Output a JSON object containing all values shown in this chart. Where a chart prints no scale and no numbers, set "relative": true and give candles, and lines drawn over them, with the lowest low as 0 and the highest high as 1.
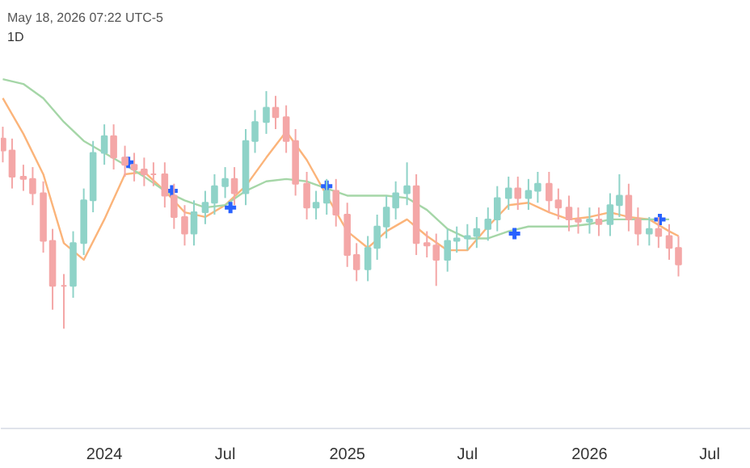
{
  "chart_data": {
    "type": "candlestick",
    "relative": true,
    "title": "1D",
    "annotations": [
      "May 18, 2026 07:22 UTC-5"
    ],
    "xlim": [
      "2023-07-29",
      "2026-09-01"
    ],
    "xticks": [
      {
        "value": "2024-01-01",
        "label": "2024"
      },
      {
        "value": "2024-07-01",
        "label": "Jul"
      },
      {
        "value": "2025-01-01",
        "label": "2025"
      },
      {
        "value": "2025-07-01",
        "label": "Jul"
      },
      {
        "value": "2026-01-01",
        "label": "2026"
      },
      {
        "value": "2026-07-01",
        "label": "Jul"
      }
    ],
    "tick_labels": "x",
    "x": [
      "2023-08-01",
      "2023-08-15",
      "2023-09-01",
      "2023-09-15",
      "2023-10-01",
      "2023-10-15",
      "2023-11-01",
      "2023-11-15",
      "2023-12-01",
      "2023-12-15",
      "2024-01-01",
      "2024-01-15",
      "2024-02-01",
      "2024-02-15",
      "2024-03-01",
      "2024-03-15",
      "2024-04-01",
      "2024-04-15",
      "2024-05-01",
      "2024-05-15",
      "2024-06-01",
      "2024-06-15",
      "2024-07-01",
      "2024-07-15",
      "2024-08-01",
      "2024-08-15",
      "2024-09-01",
      "2024-09-15",
      "2024-10-01",
      "2024-10-15",
      "2024-11-01",
      "2024-11-15",
      "2024-12-01",
      "2024-12-15",
      "2025-01-01",
      "2025-01-15",
      "2025-02-01",
      "2025-02-15",
      "2025-03-01",
      "2025-03-15",
      "2025-04-01",
      "2025-04-15",
      "2025-05-01",
      "2025-05-15",
      "2025-06-01",
      "2025-06-15",
      "2025-07-01",
      "2025-07-15",
      "2025-08-01",
      "2025-08-15",
      "2025-09-01",
      "2025-09-15",
      "2025-10-01",
      "2025-10-15",
      "2025-11-01",
      "2025-11-15",
      "2025-12-01",
      "2025-12-15",
      "2026-01-01",
      "2026-01-15",
      "2026-02-01",
      "2026-02-15",
      "2026-03-01",
      "2026-03-15",
      "2026-04-01",
      "2026-04-15",
      "2026-05-01",
      "2026-05-15"
    ],
    "ohlc": [
      [
        0.8,
        0.85,
        0.7,
        0.75
      ],
      [
        0.75,
        0.8,
        0.59,
        0.64
      ],
      [
        0.64,
        0.69,
        0.58,
        0.63
      ],
      [
        0.63,
        0.68,
        0.52,
        0.57
      ],
      [
        0.57,
        0.62,
        0.32,
        0.37
      ],
      [
        0.37,
        0.42,
        0.08,
        0.18
      ],
      [
        0.18,
        0.23,
        0.0,
        0.18
      ],
      [
        0.18,
        0.41,
        0.13,
        0.36
      ],
      [
        0.36,
        0.59,
        0.31,
        0.54
      ],
      [
        0.54,
        0.79,
        0.49,
        0.74
      ],
      [
        0.74,
        0.86,
        0.69,
        0.81
      ],
      [
        0.81,
        0.86,
        0.67,
        0.72
      ],
      [
        0.72,
        0.77,
        0.64,
        0.69
      ],
      [
        0.69,
        0.74,
        0.62,
        0.67
      ],
      [
        0.67,
        0.72,
        0.6,
        0.65
      ],
      [
        0.65,
        0.7,
        0.6,
        0.65
      ],
      [
        0.65,
        0.7,
        0.51,
        0.56
      ],
      [
        0.56,
        0.61,
        0.42,
        0.47
      ],
      [
        0.47,
        0.52,
        0.35,
        0.4
      ],
      [
        0.4,
        0.54,
        0.35,
        0.49
      ],
      [
        0.49,
        0.58,
        0.44,
        0.53
      ],
      [
        0.53,
        0.65,
        0.48,
        0.6
      ],
      [
        0.6,
        0.68,
        0.55,
        0.63
      ],
      [
        0.63,
        0.68,
        0.52,
        0.57
      ],
      [
        0.57,
        0.84,
        0.52,
        0.79
      ],
      [
        0.79,
        0.92,
        0.74,
        0.87
      ],
      [
        0.87,
        1.0,
        0.82,
        0.93
      ],
      [
        0.93,
        0.98,
        0.84,
        0.89
      ],
      [
        0.89,
        0.94,
        0.74,
        0.79
      ],
      [
        0.79,
        0.84,
        0.56,
        0.61
      ],
      [
        0.61,
        0.66,
        0.46,
        0.51
      ],
      [
        0.51,
        0.58,
        0.46,
        0.53
      ],
      [
        0.53,
        0.63,
        0.48,
        0.58
      ],
      [
        0.58,
        0.63,
        0.43,
        0.48
      ],
      [
        0.48,
        0.53,
        0.26,
        0.31
      ],
      [
        0.31,
        0.36,
        0.2,
        0.25
      ],
      [
        0.25,
        0.39,
        0.2,
        0.34
      ],
      [
        0.34,
        0.48,
        0.29,
        0.43
      ],
      [
        0.43,
        0.56,
        0.38,
        0.51
      ],
      [
        0.51,
        0.62,
        0.46,
        0.57
      ],
      [
        0.57,
        0.7,
        0.52,
        0.6
      ],
      [
        0.6,
        0.65,
        0.31,
        0.36
      ],
      [
        0.36,
        0.41,
        0.3,
        0.35
      ],
      [
        0.35,
        0.4,
        0.18,
        0.29
      ],
      [
        0.29,
        0.42,
        0.24,
        0.37
      ],
      [
        0.37,
        0.43,
        0.32,
        0.38
      ],
      [
        0.38,
        0.44,
        0.33,
        0.39
      ],
      [
        0.39,
        0.47,
        0.34,
        0.42
      ],
      [
        0.42,
        0.51,
        0.37,
        0.46
      ],
      [
        0.46,
        0.6,
        0.41,
        0.55
      ],
      [
        0.55,
        0.64,
        0.5,
        0.59
      ],
      [
        0.59,
        0.64,
        0.5,
        0.55
      ],
      [
        0.55,
        0.63,
        0.5,
        0.58
      ],
      [
        0.58,
        0.66,
        0.53,
        0.61
      ],
      [
        0.61,
        0.66,
        0.49,
        0.54
      ],
      [
        0.54,
        0.59,
        0.46,
        0.51
      ],
      [
        0.51,
        0.56,
        0.41,
        0.46
      ],
      [
        0.46,
        0.51,
        0.4,
        0.45
      ],
      [
        0.45,
        0.51,
        0.4,
        0.46
      ],
      [
        0.46,
        0.51,
        0.39,
        0.44
      ],
      [
        0.44,
        0.57,
        0.39,
        0.52
      ],
      [
        0.52,
        0.65,
        0.47,
        0.56
      ],
      [
        0.56,
        0.61,
        0.41,
        0.46
      ],
      [
        0.46,
        0.51,
        0.35,
        0.4
      ],
      [
        0.4,
        0.47,
        0.35,
        0.42
      ],
      [
        0.42,
        0.47,
        0.34,
        0.39
      ],
      [
        0.39,
        0.44,
        0.29,
        0.34
      ],
      [
        0.34,
        0.39,
        0.22,
        0.27
      ]
    ],
    "colors": [
      "#f4a7a7",
      "#f4a7a7",
      "#f4a7a7",
      "#f4a7a7",
      "#f4a7a7",
      "#f4a7a7",
      "#f4a7a7",
      "#8fd3c8",
      "#8fd3c8",
      "#8fd3c8",
      "#8fd3c8",
      "#f4a7a7",
      "#f4a7a7",
      "#f4a7a7",
      "#f4a7a7",
      "#f4a7a7",
      "#f4a7a7",
      "#f4a7a7",
      "#f4a7a7",
      "#8fd3c8",
      "#8fd3c8",
      "#8fd3c8",
      "#8fd3c8",
      "#f4a7a7",
      "#8fd3c8",
      "#8fd3c8",
      "#8fd3c8",
      "#f4a7a7",
      "#f4a7a7",
      "#f4a7a7",
      "#f4a7a7",
      "#8fd3c8",
      "#8fd3c8",
      "#f4a7a7",
      "#f4a7a7",
      "#f4a7a7",
      "#8fd3c8",
      "#8fd3c8",
      "#8fd3c8",
      "#8fd3c8",
      "#8fd3c8",
      "#f4a7a7",
      "#f4a7a7",
      "#f4a7a7",
      "#8fd3c8",
      "#8fd3c8",
      "#8fd3c8",
      "#8fd3c8",
      "#8fd3c8",
      "#8fd3c8",
      "#8fd3c8",
      "#f4a7a7",
      "#8fd3c8",
      "#8fd3c8",
      "#f4a7a7",
      "#f4a7a7",
      "#f4a7a7",
      "#f4a7a7",
      "#8fd3c8",
      "#f4a7a7",
      "#8fd3c8",
      "#8fd3c8",
      "#f4a7a7",
      "#f4a7a7",
      "#8fd3c8",
      "#f4a7a7",
      "#f4a7a7",
      "#f4a7a7"
    ],
    "series": [
      {
        "type": "line",
        "color": "#fbb47a",
        "x": [
          "2023-08-01",
          "2023-09-01",
          "2023-10-01",
          "2023-11-01",
          "2023-12-01",
          "2024-01-01",
          "2024-02-01",
          "2024-03-01",
          "2024-04-01",
          "2024-05-01",
          "2024-06-01",
          "2024-07-01",
          "2024-08-01",
          "2024-09-01",
          "2024-10-01",
          "2024-11-01",
          "2024-12-01",
          "2025-01-01",
          "2025-02-01",
          "2025-03-01",
          "2025-04-01",
          "2025-05-01",
          "2025-06-01",
          "2025-07-01",
          "2025-08-01",
          "2025-09-01",
          "2025-10-01",
          "2025-11-01",
          "2025-12-01",
          "2026-01-01",
          "2026-02-01",
          "2026-03-01",
          "2026-04-01",
          "2026-05-01",
          "2026-05-15"
        ],
        "values": [
          0.97,
          0.82,
          0.65,
          0.36,
          0.29,
          0.46,
          0.65,
          0.66,
          0.58,
          0.49,
          0.47,
          0.52,
          0.6,
          0.72,
          0.83,
          0.71,
          0.56,
          0.41,
          0.34,
          0.41,
          0.46,
          0.39,
          0.33,
          0.33,
          0.43,
          0.52,
          0.53,
          0.49,
          0.46,
          0.47,
          0.49,
          0.47,
          0.46,
          0.41,
          0.39
        ]
      },
      {
        "type": "line",
        "color": "#a5d6a7",
        "x": [
          "2023-08-01",
          "2023-09-01",
          "2023-10-01",
          "2023-11-01",
          "2023-12-01",
          "2024-01-01",
          "2024-02-01",
          "2024-03-01",
          "2024-04-01",
          "2024-05-01",
          "2024-06-01",
          "2024-07-01",
          "2024-08-01",
          "2024-09-01",
          "2024-10-01",
          "2024-11-01",
          "2024-12-01",
          "2025-01-01",
          "2025-02-01",
          "2025-03-01",
          "2025-04-01",
          "2025-05-01",
          "2025-06-01",
          "2025-07-01",
          "2025-08-01",
          "2025-09-01",
          "2025-10-01",
          "2025-11-01",
          "2025-12-01",
          "2026-01-01",
          "2026-02-01",
          "2026-03-01",
          "2026-04-01",
          "2026-05-01"
        ],
        "values": [
          1.05,
          1.03,
          0.97,
          0.87,
          0.79,
          0.74,
          0.69,
          0.64,
          0.58,
          0.54,
          0.51,
          0.52,
          0.58,
          0.62,
          0.63,
          0.62,
          0.59,
          0.56,
          0.56,
          0.56,
          0.55,
          0.5,
          0.42,
          0.38,
          0.38,
          0.41,
          0.43,
          0.43,
          0.43,
          0.44,
          0.46,
          0.46,
          0.46,
          0.46
        ]
      },
      {
        "type": "scatter",
        "marker": "cross",
        "color": "#2962ff",
        "x": [
          "2024-02-06",
          "2024-04-12",
          "2024-07-09",
          "2024-12-01",
          "2025-09-10",
          "2026-04-17"
        ],
        "values": [
          0.7,
          0.58,
          0.51,
          0.6,
          0.4,
          0.46
        ]
      }
    ]
  }
}
